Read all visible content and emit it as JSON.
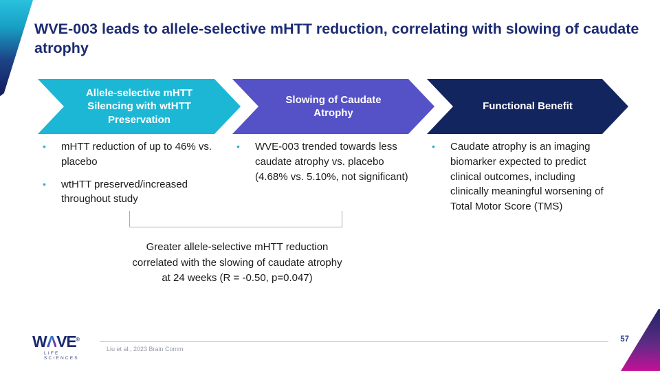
{
  "slide": {
    "title": "WVE-003 leads to allele-selective mHTT reduction, correlating with slowing of caudate atrophy",
    "page_number": "57",
    "citation": "Liu et al., 2023 Brain Comm"
  },
  "chevrons": [
    {
      "label": "Allele-selective mHTT Silencing with wtHTT Preservation",
      "color": "#1cb7d5"
    },
    {
      "label": "Slowing of Caudate Atrophy",
      "color": "#5551c6"
    },
    {
      "label": "Functional Benefit",
      "color": "#13255f"
    }
  ],
  "columns": [
    {
      "bullets": [
        "mHTT reduction of up to 46% vs. placebo",
        "wtHTT preserved/increased throughout study"
      ]
    },
    {
      "bullets": [
        "WVE-003 trended towards less caudate atrophy vs. placebo (4.68% vs. 5.10%, not significant)"
      ]
    },
    {
      "bullets": [
        "Caudate atrophy is an imaging biomarker expected to predict clinical outcomes, including clinically meaningful worsening of Total Motor Score (TMS)"
      ]
    }
  ],
  "callout": {
    "text": "Greater allele-selective mHTT reduction correlated with the slowing of caudate atrophy at 24 weeks (R = -0.50, p=0.047)"
  },
  "logo": {
    "letter_w": "W",
    "letter_a": "Λ",
    "letters_ve": "VE",
    "registered_mark": "®",
    "subtitle": "LIFE SCIENCES"
  },
  "colors": {
    "title_text": "#1c2b72",
    "body_text": "#1a1a1a",
    "bullet_dot": "#2bb3cf",
    "chevron_cyan": "#1cb7d5",
    "chevron_purple": "#5551c6",
    "chevron_navy": "#13255f",
    "bracket_line": "#a8adb5",
    "footer_line": "#b6bac0",
    "citation_text": "#969ca6",
    "corner_gradient_top": "#2ac1de",
    "corner_gradient_bottom": "#121c5e",
    "corner_br_top": "#1e2566",
    "corner_br_bottom": "#c31197"
  }
}
